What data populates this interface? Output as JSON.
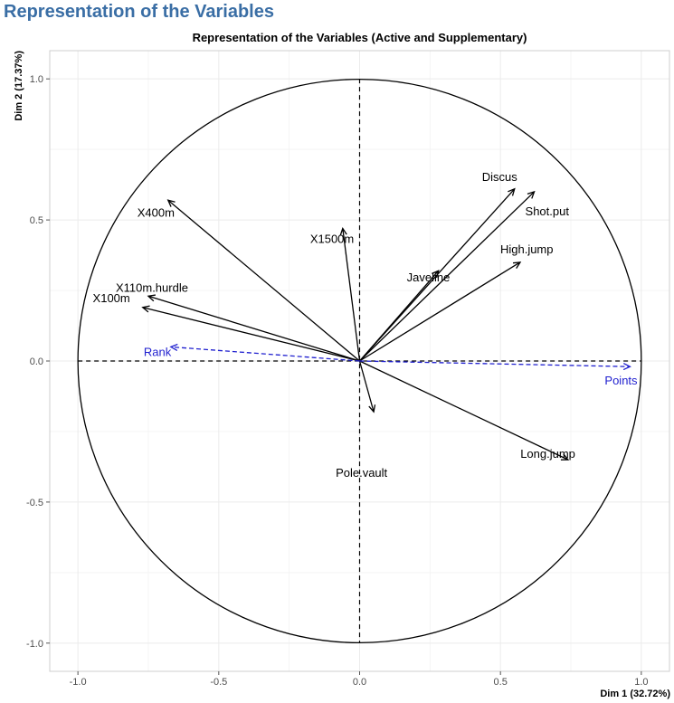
{
  "page": {
    "title": "Representation of the Variables"
  },
  "chart_data": {
    "type": "scatter",
    "subtype": "pca-variable-correlation-circle",
    "title": "Representation of the Variables (Active and Supplementary)",
    "xlabel": "Dim 1 (32.72%)",
    "ylabel": "Dim 2 (17.37%)",
    "xlim": [
      -1.1,
      1.1
    ],
    "ylim": [
      -1.1,
      1.1
    ],
    "xticks": [
      -1.0,
      -0.5,
      0.0,
      0.5,
      1.0
    ],
    "yticks": [
      -1.0,
      -0.5,
      0.0,
      0.5,
      1.0
    ],
    "xtick_labels": [
      "-1.0",
      "-0.5",
      "0.0",
      "0.5",
      "1.0"
    ],
    "ytick_labels": [
      "-1.0",
      "-0.5",
      "0.0",
      "0.5",
      "1.0"
    ],
    "grid": true,
    "unit_circle": true,
    "colors": {
      "active": "#000000",
      "supplementary": "#1f1fcf"
    },
    "active_variables": [
      {
        "name": "X100m",
        "x": -0.77,
        "y": 0.19
      },
      {
        "name": "Long.jump",
        "x": 0.74,
        "y": -0.35
      },
      {
        "name": "Shot.put",
        "x": 0.62,
        "y": 0.6
      },
      {
        "name": "High.jump",
        "x": 0.57,
        "y": 0.35
      },
      {
        "name": "X400m",
        "x": -0.68,
        "y": 0.57
      },
      {
        "name": "X110m.hurdle",
        "x": -0.75,
        "y": 0.23
      },
      {
        "name": "Discus",
        "x": 0.55,
        "y": 0.61
      },
      {
        "name": "Pole.vault",
        "x": 0.05,
        "y": -0.18
      },
      {
        "name": "Javeline",
        "x": 0.28,
        "y": 0.32
      },
      {
        "name": "X1500m",
        "x": -0.06,
        "y": 0.47
      }
    ],
    "supplementary_variables": [
      {
        "name": "Rank",
        "x": -0.67,
        "y": 0.05
      },
      {
        "name": "Points",
        "x": 0.96,
        "y": -0.02
      }
    ]
  }
}
